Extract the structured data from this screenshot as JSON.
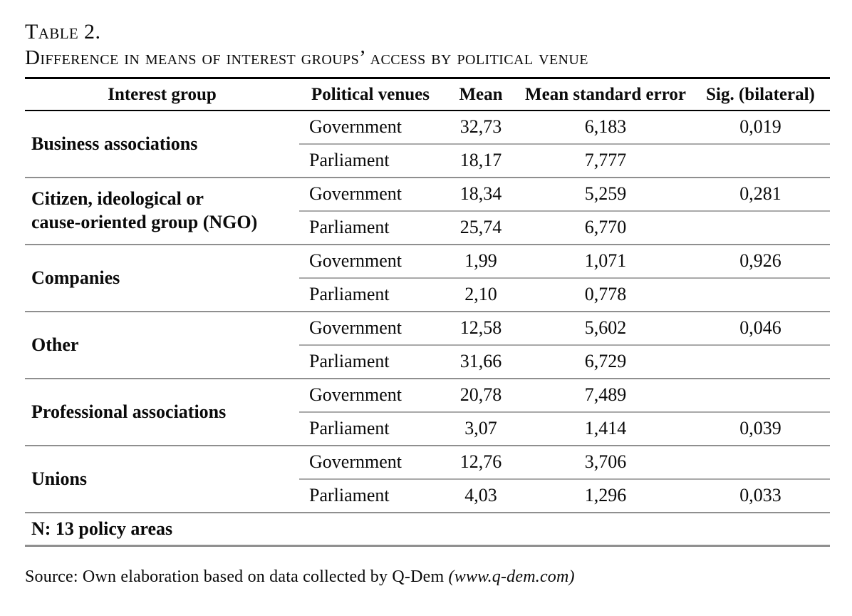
{
  "page": {
    "title": "Table 2.",
    "subtitle": "Difference in means of interest groups’ access by political venue"
  },
  "table": {
    "headers": {
      "interest_group": "Interest group",
      "political_venues": "Political venues",
      "mean": "Mean",
      "mean_standard_error": "Mean standard error",
      "sig_bilateral": "Sig. (bilateral)"
    },
    "groups": [
      {
        "name": "Business associations",
        "rows": [
          {
            "venue": "Government",
            "mean": "32,73",
            "se": "6,183",
            "sig": "0,019"
          },
          {
            "venue": "Parliament",
            "mean": "18,17",
            "se": "7,777",
            "sig": ""
          }
        ]
      },
      {
        "name": "Citizen, ideological or\ncause-oriented group (NGO)",
        "rows": [
          {
            "venue": "Government",
            "mean": "18,34",
            "se": "5,259",
            "sig": "0,281"
          },
          {
            "venue": "Parliament",
            "mean": "25,74",
            "se": "6,770",
            "sig": ""
          }
        ]
      },
      {
        "name": "Companies",
        "rows": [
          {
            "venue": "Government",
            "mean": "1,99",
            "se": "1,071",
            "sig": "0,926"
          },
          {
            "venue": "Parliament",
            "mean": "2,10",
            "se": "0,778",
            "sig": ""
          }
        ]
      },
      {
        "name": "Other",
        "rows": [
          {
            "venue": "Government",
            "mean": "12,58",
            "se": "5,602",
            "sig": "0,046"
          },
          {
            "venue": "Parliament",
            "mean": "31,66",
            "se": "6,729",
            "sig": ""
          }
        ]
      },
      {
        "name": "Professional associations",
        "rows": [
          {
            "venue": "Government",
            "mean": "20,78",
            "se": "7,489",
            "sig": ""
          },
          {
            "venue": "Parliament",
            "mean": "3,07",
            "se": "1,414",
            "sig": "0,039"
          }
        ]
      },
      {
        "name": "Unions",
        "rows": [
          {
            "venue": "Government",
            "mean": "12,76",
            "se": "3,706",
            "sig": ""
          },
          {
            "venue": "Parliament",
            "mean": "4,03",
            "se": "1,296",
            "sig": "0,033"
          }
        ]
      }
    ],
    "footer_note": "N: 13 policy areas"
  },
  "source": {
    "text": "Source: Own elaboration based on data collected by Q-Dem ",
    "italic": "(www.q-dem.com)"
  },
  "colors": {
    "text": "#0a0a0a",
    "rule_black": "#000000",
    "rule_gray": "#8f8f8f",
    "rule_gray_light": "#a9a9a9"
  }
}
